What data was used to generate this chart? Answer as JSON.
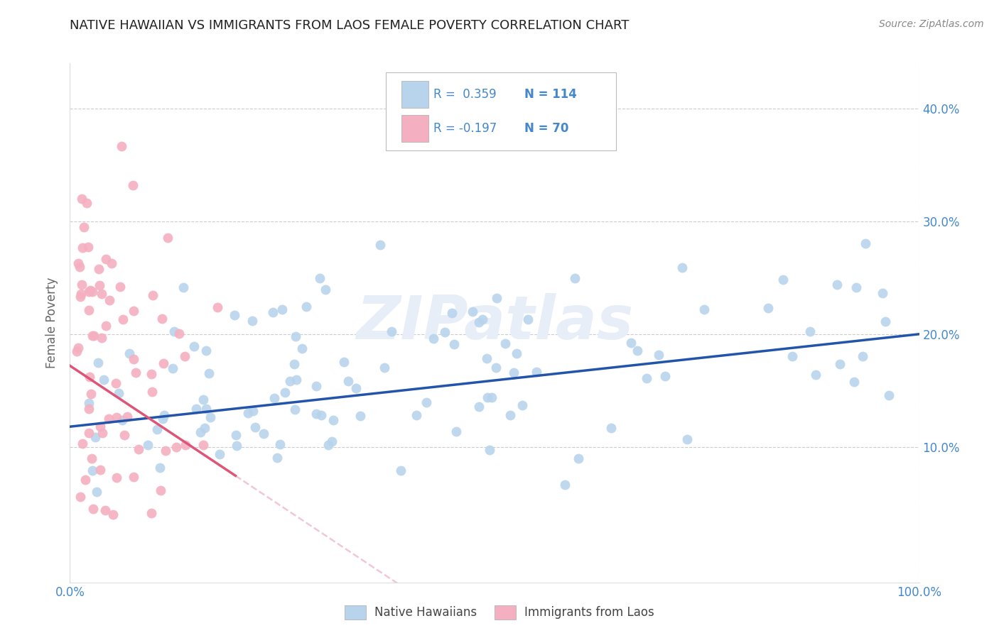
{
  "title": "NATIVE HAWAIIAN VS IMMIGRANTS FROM LAOS FEMALE POVERTY CORRELATION CHART",
  "source": "Source: ZipAtlas.com",
  "ylabel": "Female Poverty",
  "xlim": [
    0.0,
    1.0
  ],
  "ylim": [
    -0.02,
    0.44
  ],
  "y_ticks": [
    0.1,
    0.2,
    0.3,
    0.4
  ],
  "y_tick_labels": [
    "10.0%",
    "20.0%",
    "30.0%",
    "40.0%"
  ],
  "x_ticks": [
    0.0,
    1.0
  ],
  "x_tick_labels": [
    "0.0%",
    "100.0%"
  ],
  "r_blue": 0.359,
  "n_blue": 114,
  "r_pink": -0.197,
  "n_pink": 70,
  "blue_dot_color": "#b8d4ed",
  "pink_dot_color": "#f4b0c0",
  "blue_line_color": "#2255aa",
  "pink_line_solid_color": "#dd5577",
  "pink_line_dash_color": "#f0c8d4",
  "tick_label_color": "#4488cc",
  "legend_blue_label": "Native Hawaiians",
  "legend_pink_label": "Immigrants from Laos",
  "watermark_color": "#e8eef8",
  "grid_color": "#cccccc",
  "title_color": "#222222",
  "axis_label_color": "#666666",
  "blue_trend_y0": 0.118,
  "blue_trend_y1": 0.202,
  "pink_trend_y0": 0.172,
  "pink_trend_slope": -0.52,
  "seed_blue": 77,
  "seed_pink": 99
}
